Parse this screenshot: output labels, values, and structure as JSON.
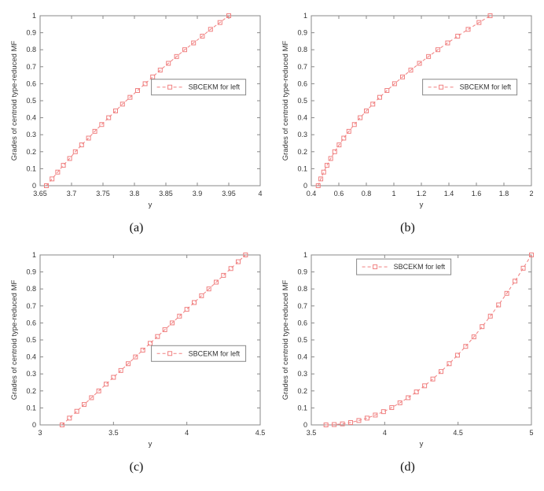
{
  "page": {
    "background": "#ffffff"
  },
  "style": {
    "series_color": "#f08080",
    "axis_color": "#888888",
    "text_color": "#333333",
    "legend_border": "#888888",
    "legend_fill": "#ffffff"
  },
  "captions": [
    "(a)",
    "(b)",
    "(c)",
    "(d)"
  ],
  "chart_data": [
    {
      "type": "line",
      "panel": "(a)",
      "title": "",
      "xlabel": "y",
      "ylabel": "Grades of centroid type-reduced MF",
      "xlim": [
        3.65,
        4
      ],
      "ylim": [
        0,
        1
      ],
      "xticks": [
        3.65,
        3.7,
        3.75,
        3.8,
        3.85,
        3.9,
        3.95,
        4
      ],
      "xtick_labels": [
        "3.65",
        "3.7",
        "3.75",
        "3.8",
        "3.85",
        "3.9",
        "3.95",
        "4"
      ],
      "yticks": [
        0,
        0.1,
        0.2,
        0.3,
        0.4,
        0.5,
        0.6,
        0.7,
        0.8,
        0.9,
        1
      ],
      "ytick_labels": [
        "0",
        "0.1",
        "0.2",
        "0.3",
        "0.4",
        "0.5",
        "0.6",
        "0.7",
        "0.8",
        "0.9",
        "1"
      ],
      "grid": false,
      "legend": {
        "label": "SBCEKM for left",
        "anchor": {
          "x": 0.72,
          "y": 0.42
        }
      },
      "series": [
        {
          "name": "SBCEKM for left",
          "marker": "square",
          "linestyle": "dashed",
          "x": [
            3.66,
            3.669,
            3.678,
            3.687,
            3.697,
            3.706,
            3.716,
            3.727,
            3.737,
            3.748,
            3.759,
            3.77,
            3.781,
            3.793,
            3.805,
            3.817,
            3.829,
            3.841,
            3.854,
            3.867,
            3.88,
            3.894,
            3.908,
            3.921,
            3.936,
            3.95
          ],
          "y": [
            0,
            0.04,
            0.08,
            0.12,
            0.16,
            0.2,
            0.24,
            0.28,
            0.32,
            0.36,
            0.4,
            0.44,
            0.48,
            0.52,
            0.56,
            0.6,
            0.64,
            0.68,
            0.72,
            0.76,
            0.8,
            0.84,
            0.88,
            0.92,
            0.96,
            1
          ]
        }
      ]
    },
    {
      "type": "line",
      "panel": "(b)",
      "title": "",
      "xlabel": "y",
      "ylabel": "Grades of centroid type-reduced MF",
      "xlim": [
        0.4,
        2
      ],
      "ylim": [
        0,
        1
      ],
      "xticks": [
        0.4,
        0.6,
        0.8,
        1,
        1.2,
        1.4,
        1.6,
        1.8,
        2
      ],
      "xtick_labels": [
        "0.4",
        "0.6",
        "0.8",
        "1",
        "1.2",
        "1.4",
        "1.6",
        "1.8",
        "2"
      ],
      "yticks": [
        0,
        0.1,
        0.2,
        0.3,
        0.4,
        0.5,
        0.6,
        0.7,
        0.8,
        0.9,
        1
      ],
      "ytick_labels": [
        "0",
        "0.1",
        "0.2",
        "0.3",
        "0.4",
        "0.5",
        "0.6",
        "0.7",
        "0.8",
        "0.9",
        "1"
      ],
      "grid": false,
      "legend": {
        "label": "SBCEKM for left",
        "anchor": {
          "x": 0.72,
          "y": 0.42
        }
      },
      "series": [
        {
          "name": "SBCEKM for left",
          "marker": "square",
          "linestyle": "dashed",
          "x": [
            0.45,
            0.469,
            0.49,
            0.514,
            0.541,
            0.57,
            0.602,
            0.636,
            0.673,
            0.713,
            0.755,
            0.8,
            0.847,
            0.897,
            0.95,
            1.005,
            1.063,
            1.123,
            1.186,
            1.252,
            1.32,
            1.391,
            1.464,
            1.54,
            1.619,
            1.7
          ],
          "y": [
            0,
            0.04,
            0.08,
            0.12,
            0.16,
            0.2,
            0.24,
            0.28,
            0.32,
            0.36,
            0.4,
            0.44,
            0.48,
            0.52,
            0.56,
            0.6,
            0.64,
            0.68,
            0.72,
            0.76,
            0.8,
            0.84,
            0.88,
            0.92,
            0.96,
            1
          ]
        }
      ]
    },
    {
      "type": "line",
      "panel": "(c)",
      "title": "",
      "xlabel": "y",
      "ylabel": "Grades of centroid type-reduced MF",
      "xlim": [
        3,
        4.5
      ],
      "ylim": [
        0,
        1
      ],
      "xticks": [
        3,
        3.5,
        4,
        4.5
      ],
      "xtick_labels": [
        "3",
        "3.5",
        "4",
        "4.5"
      ],
      "yticks": [
        0,
        0.1,
        0.2,
        0.3,
        0.4,
        0.5,
        0.6,
        0.7,
        0.8,
        0.9,
        1
      ],
      "ytick_labels": [
        "0",
        "0.1",
        "0.2",
        "0.3",
        "0.4",
        "0.5",
        "0.6",
        "0.7",
        "0.8",
        "0.9",
        "1"
      ],
      "grid": false,
      "legend": {
        "label": "SBCEKM for left",
        "anchor": {
          "x": 0.72,
          "y": 0.58
        }
      },
      "series": [
        {
          "name": "SBCEKM for left",
          "marker": "square",
          "linestyle": "dashed",
          "x": [
            3.15,
            3.2,
            3.25,
            3.3,
            3.35,
            3.4,
            3.45,
            3.5,
            3.55,
            3.6,
            3.65,
            3.7,
            3.75,
            3.8,
            3.85,
            3.9,
            3.95,
            4.0,
            4.05,
            4.1,
            4.15,
            4.2,
            4.25,
            4.3,
            4.35,
            4.4
          ],
          "y": [
            0,
            0.04,
            0.08,
            0.12,
            0.16,
            0.2,
            0.24,
            0.28,
            0.32,
            0.36,
            0.4,
            0.44,
            0.48,
            0.52,
            0.56,
            0.6,
            0.64,
            0.68,
            0.72,
            0.76,
            0.8,
            0.84,
            0.88,
            0.92,
            0.96,
            1
          ]
        }
      ]
    },
    {
      "type": "line",
      "panel": "(d)",
      "title": "",
      "xlabel": "y",
      "ylabel": "Grades of centroid type-reduced MF",
      "xlim": [
        3.5,
        5
      ],
      "ylim": [
        0,
        1
      ],
      "xticks": [
        3.5,
        4,
        4.5,
        5
      ],
      "xtick_labels": [
        "3.5",
        "4",
        "4.5",
        "5"
      ],
      "yticks": [
        0,
        0.1,
        0.2,
        0.3,
        0.4,
        0.5,
        0.6,
        0.7,
        0.8,
        0.9,
        1
      ],
      "ytick_labels": [
        "0",
        "0.1",
        "0.2",
        "0.3",
        "0.4",
        "0.5",
        "0.6",
        "0.7",
        "0.8",
        "0.9",
        "1"
      ],
      "grid": false,
      "legend": {
        "label": "SBCEKM for left",
        "anchor": {
          "x": 0.42,
          "y": 0.07
        }
      },
      "series": [
        {
          "name": "SBCEKM for left",
          "marker": "square",
          "linestyle": "dashed",
          "x": [
            3.6,
            3.656,
            3.712,
            3.768,
            3.824,
            3.88,
            3.936,
            3.992,
            4.048,
            4.104,
            4.16,
            4.216,
            4.272,
            4.328,
            4.384,
            4.44,
            4.496,
            4.552,
            4.608,
            4.664,
            4.72,
            4.776,
            4.832,
            4.888,
            4.944,
            5.0
          ],
          "y": [
            0,
            0.002,
            0.006,
            0.014,
            0.026,
            0.04,
            0.058,
            0.078,
            0.102,
            0.13,
            0.16,
            0.194,
            0.23,
            0.27,
            0.314,
            0.36,
            0.41,
            0.462,
            0.518,
            0.578,
            0.64,
            0.706,
            0.774,
            0.846,
            0.922,
            1.0
          ]
        }
      ]
    }
  ]
}
